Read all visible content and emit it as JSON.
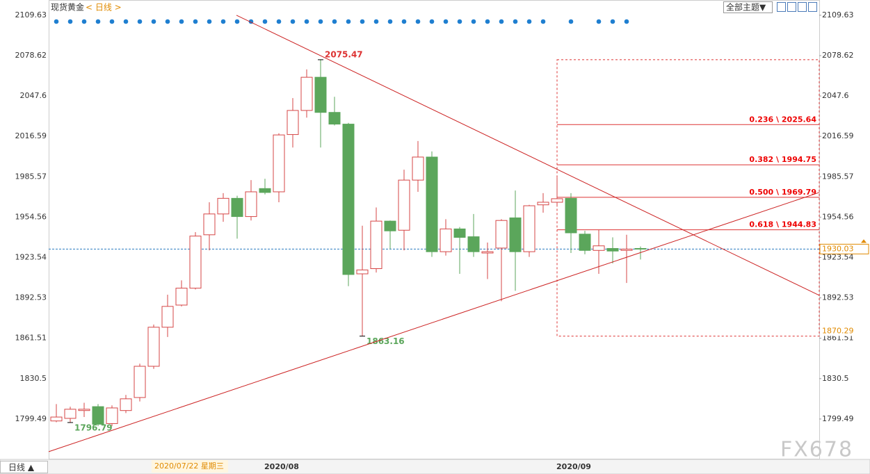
{
  "chart_data": {
    "type": "candlestick",
    "title": "现货黄金",
    "period": "< 日线 >",
    "theme_button": "全部主题▼",
    "period_button": "日线 ▲",
    "crosshair_date": "2020/07/22 星期三",
    "watermark": "FX678",
    "categories": [
      null,
      null,
      null,
      null,
      null,
      null,
      null,
      null,
      null,
      null,
      null,
      null,
      null,
      null,
      null,
      null,
      "2020/08",
      null,
      null,
      null,
      null,
      null,
      null,
      null,
      null,
      null,
      null,
      null,
      null,
      null,
      null,
      null,
      null,
      null,
      null,
      null,
      null,
      "2020/09",
      null,
      null,
      null,
      null,
      null
    ],
    "open": [
      1798,
      1800,
      1806,
      1809,
      1796,
      1806,
      1816,
      1840,
      1870,
      1887,
      1900,
      1941,
      1957,
      1969,
      1955,
      1976.5,
      1974,
      2018,
      2036.5,
      2062,
      2035,
      2026,
      1911,
      1915,
      1951.5,
      1944.5,
      1983,
      2000.7,
      1928,
      1945.5,
      1939.5,
      1927,
      1930.8,
      1954,
      1928,
      1964,
      1966,
      1969,
      1941.5,
      1929,
      1930.5,
      1929,
      1930.5
    ],
    "close": [
      1801,
      1807,
      1807,
      1795.5,
      1808,
      1815,
      1840,
      1870,
      1886,
      1900,
      1940,
      1957,
      1969,
      1955,
      1974,
      1973.5,
      2017.7,
      2036.5,
      2062,
      2035,
      2026,
      1910.5,
      1914,
      1951.5,
      1944,
      1983,
      2000.7,
      1928,
      1945.5,
      1939,
      1928,
      1928,
      1952,
      1928,
      1963.3,
      1966,
      1968.7,
      1942.5,
      1929,
      1932.5,
      1928.5,
      1930,
      1930
    ],
    "high": [
      1811,
      1809,
      1812,
      1811,
      1810,
      1818,
      1842,
      1872,
      1895,
      1906,
      1943,
      1966,
      1973,
      1971,
      1983,
      1984,
      2019,
      2046,
      2068,
      2075.47,
      2047,
      2027,
      1948,
      1962,
      1952,
      1991,
      2013,
      2005,
      1953,
      1947,
      1957,
      1935,
      1953,
      1975,
      1964,
      1973,
      1985,
      1973,
      1944,
      1945,
      1939,
      1941,
      1932
    ],
    "low": [
      1797,
      1796.79,
      1801,
      1794,
      1794,
      1804,
      1813,
      1838,
      1862.5,
      1886,
      1899,
      1929,
      1951,
      1938,
      1952,
      1972,
      1966,
      2008,
      2031,
      2008,
      2025,
      1901.5,
      1863.16,
      1912,
      1930,
      1929,
      1974,
      1924,
      1925,
      1911,
      1924,
      1907,
      1890,
      1898,
      1924,
      1958,
      1963,
      1927,
      1926,
      1911,
      1919,
      1904,
      1922
    ],
    "up_color": "#d64545",
    "down_color": "#5ba65b",
    "high_label": 2075.47,
    "low_labels": [
      1863.16,
      1796.79
    ],
    "xlim": [
      -0.55,
      54.85
    ],
    "ylim": [
      1769,
      2120
    ],
    "yticks": [
      1799.49,
      1830.5,
      1861.51,
      1892.53,
      1923.54,
      1954.56,
      1985.57,
      2016.59,
      2047.6,
      2078.62,
      2109.63
    ],
    "grid": false,
    "trendlines": [
      {
        "x": [
          12.95,
          54.85
        ],
        "y": [
          2109.63,
          1894.5
        ]
      },
      {
        "x": [
          -0.55,
          54.85
        ],
        "y": [
          1774.4,
          1973.5
        ]
      }
    ],
    "fib_box": [
      1863.16,
      2075.47
    ],
    "fib_levels": [
      {
        "value": 2025.64,
        "label": "0.236 \\ 2025.64"
      },
      {
        "value": 1994.75,
        "label": "0.382 \\ 1994.75"
      },
      {
        "value": 1969.79,
        "label": "0.500 \\ 1969.79"
      },
      {
        "value": 1944.83,
        "label": "0.618 \\ 1944.83"
      }
    ],
    "last_price": 1930.03,
    "box_price": 1870.29
  }
}
